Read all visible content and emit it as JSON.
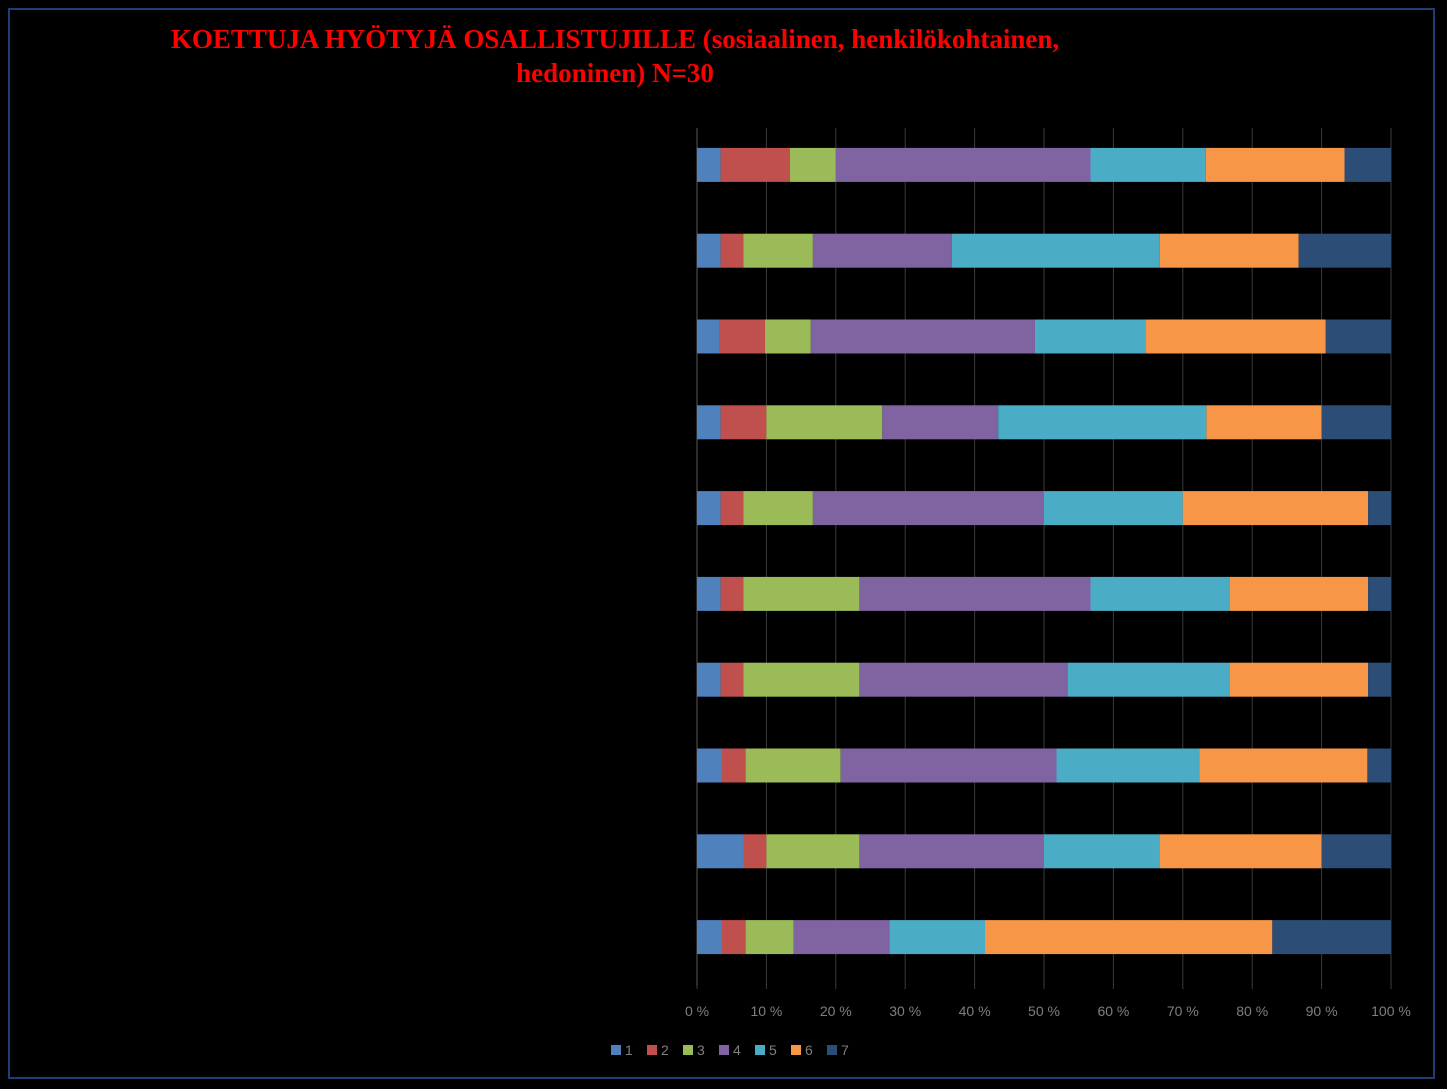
{
  "chart_data": {
    "type": "bar",
    "orientation": "horizontal",
    "stacked": "percent",
    "title_line1": "KOETTUJA HYÖTYJÄ OSALLISTUJILLE  (sosiaalinen, henkilökohtainen,",
    "title_line2": "hedoninen)  N=30",
    "categories": [
      "",
      "",
      "",
      "",
      "",
      "",
      "",
      "",
      "",
      ""
    ],
    "series": [
      {
        "name": "1",
        "color": "#4f81bd",
        "values": [
          3.4,
          3.4,
          3.3,
          3.4,
          3.4,
          3.4,
          3.4,
          3.6,
          6.7,
          3.6
        ]
      },
      {
        "name": "2",
        "color": "#c0504d",
        "values": [
          10.0,
          3.3,
          6.5,
          6.6,
          3.3,
          3.3,
          3.3,
          3.4,
          3.3,
          3.4
        ]
      },
      {
        "name": "3",
        "color": "#9bbb59",
        "values": [
          6.6,
          10.0,
          6.6,
          16.7,
          10.0,
          16.7,
          16.7,
          13.7,
          13.4,
          6.9
        ]
      },
      {
        "name": "4",
        "color": "#8064a2",
        "values": [
          36.7,
          20.0,
          32.3,
          16.7,
          33.3,
          33.3,
          30.0,
          31.1,
          26.6,
          13.8
        ]
      },
      {
        "name": "5",
        "color": "#4bacc6",
        "values": [
          16.6,
          30.0,
          16.0,
          30.0,
          20.0,
          20.0,
          23.3,
          20.6,
          16.6,
          13.8
        ]
      },
      {
        "name": "6",
        "color": "#f79646",
        "values": [
          20.0,
          20.0,
          25.9,
          16.6,
          26.7,
          20.0,
          20.0,
          24.2,
          23.4,
          41.4
        ]
      },
      {
        "name": "7",
        "color": "#2c4d75",
        "values": [
          6.7,
          13.3,
          9.4,
          10.0,
          3.3,
          3.3,
          3.3,
          3.4,
          10.0,
          17.1
        ]
      }
    ],
    "xlim": [
      0,
      100
    ],
    "xticks": [
      "0 %",
      "10 %",
      "20 %",
      "30 %",
      "40 %",
      "50 %",
      "60 %",
      "70 %",
      "80 %",
      "90 %",
      "100 %"
    ],
    "grid": "vertical",
    "legend": "bottom"
  }
}
